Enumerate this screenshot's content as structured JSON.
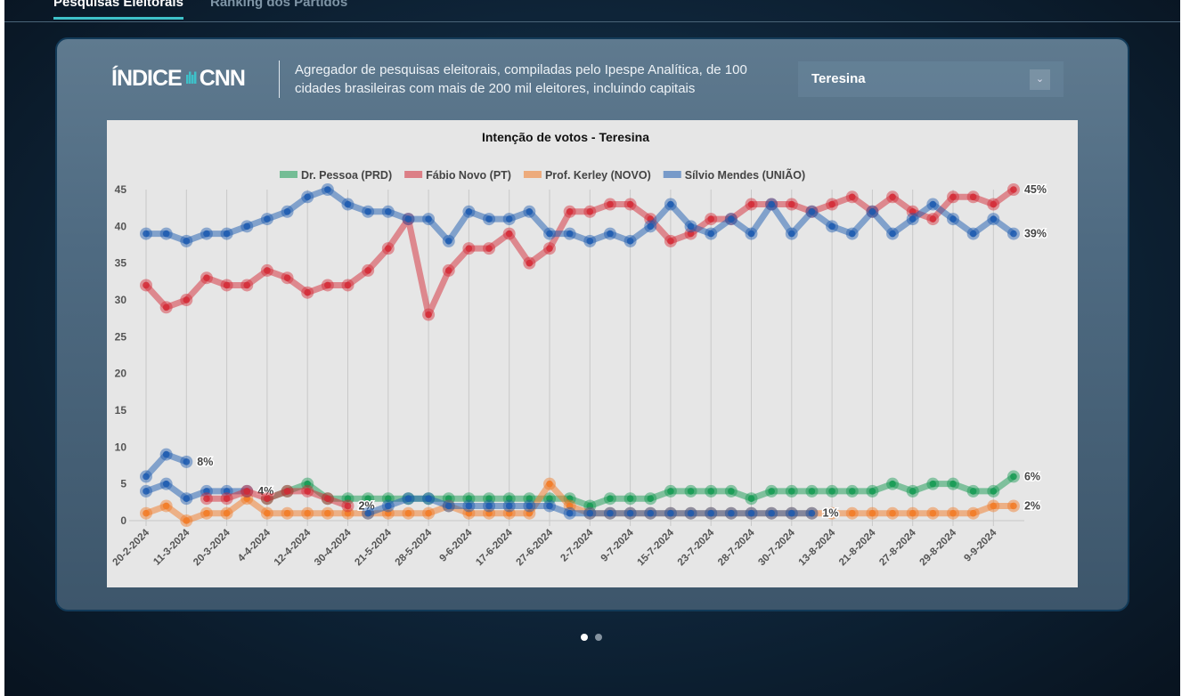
{
  "tabs": [
    {
      "label": "Pesquisas Eleitorais",
      "active": true
    },
    {
      "label": "Ranking dos Partidos",
      "active": false
    }
  ],
  "header": {
    "logo_text": "ÍNDICE CNN",
    "description": "Agregador de pesquisas eleitorais, compiladas pelo Ipespe Analítica, de 100 cidades brasileiras com mais de 200 mil eleitores, incluindo capitais",
    "city_select": {
      "value": "Teresina",
      "icon": "chevron-down-icon"
    }
  },
  "carousel": {
    "pages": 2,
    "active": 0
  },
  "chart_data": {
    "type": "line",
    "title": "Intenção de votos - Teresina",
    "ylim": [
      0,
      45
    ],
    "yticks": [
      0,
      5,
      10,
      15,
      20,
      25,
      30,
      35,
      40,
      45
    ],
    "grid": "vertical",
    "legend": "top",
    "x_tick_labels": [
      "20-2-2024",
      "11-3-2024",
      "20-3-2024",
      "4-4-2024",
      "12-4-2024",
      "30-4-2024",
      "21-5-2024",
      "28-5-2024",
      "9-6-2024",
      "17-6-2024",
      "27-6-2024",
      "2-7-2024",
      "9-7-2024",
      "15-7-2024",
      "23-7-2024",
      "28-7-2024",
      "30-7-2024",
      "13-8-2024",
      "21-8-2024",
      "27-8-2024",
      "29-8-2024",
      "9-9-2024"
    ],
    "series": [
      {
        "name": "Dr. Pessoa (PRD)",
        "color": "#159a52",
        "legend": true,
        "end_label": "6%",
        "values": [
          null,
          null,
          null,
          null,
          null,
          null,
          3,
          4,
          5,
          3,
          3,
          3,
          3,
          3,
          3,
          3,
          3,
          3,
          3,
          3,
          3,
          3,
          2,
          3,
          3,
          3,
          4,
          4,
          4,
          4,
          3,
          4,
          4,
          4,
          4,
          4,
          4,
          5,
          4,
          5,
          5,
          4,
          4,
          6
        ]
      },
      {
        "name": "Fábio Novo (PT)",
        "color": "#d42a36",
        "legend": true,
        "end_label": "45%",
        "values": [
          32,
          29,
          30,
          33,
          32,
          32,
          34,
          33,
          31,
          32,
          32,
          34,
          37,
          41,
          28,
          34,
          37,
          37,
          39,
          35,
          37,
          42,
          42,
          43,
          43,
          41,
          38,
          39,
          41,
          41,
          43,
          43,
          43,
          42,
          43,
          44,
          42,
          44,
          42,
          41,
          44,
          44,
          43,
          45
        ]
      },
      {
        "name": "Prof. Kerley (NOVO)",
        "color": "#f27a25",
        "legend": true,
        "end_label": "2%",
        "values": [
          1,
          2,
          0,
          1,
          1,
          3,
          1,
          1,
          1,
          1,
          1,
          1,
          1,
          1,
          1,
          2,
          1,
          1,
          1,
          1,
          5,
          2,
          1,
          1,
          1,
          1,
          1,
          1,
          1,
          1,
          1,
          1,
          1,
          1,
          1,
          1,
          1,
          1,
          1,
          1,
          1,
          1,
          2,
          2
        ]
      },
      {
        "name": "Sílvio Mendes (UNIÃO)",
        "color": "#1c5bb0",
        "legend": true,
        "end_label": "39%",
        "values": [
          39,
          39,
          38,
          39,
          39,
          40,
          41,
          42,
          44,
          45,
          43,
          42,
          42,
          41,
          41,
          38,
          42,
          41,
          41,
          42,
          39,
          39,
          38,
          39,
          38,
          40,
          43,
          40,
          39,
          41,
          39,
          43,
          39,
          42,
          40,
          39,
          42,
          39,
          41,
          43,
          41,
          39,
          41,
          39
        ]
      },
      {
        "color": "#1c5bb0",
        "legend": false,
        "end_label": "8%",
        "values": [
          6,
          9,
          8
        ]
      },
      {
        "color": "#1c5bb0",
        "legend": false,
        "end_label": "4%",
        "values": [
          4,
          5,
          3,
          4,
          4,
          4
        ]
      },
      {
        "color": "#d42a36",
        "legend": false,
        "end_label": "2%",
        "values": [
          null,
          null,
          null,
          3,
          3,
          4,
          3,
          4,
          4,
          3,
          2
        ]
      },
      {
        "color": "#1c5bb0",
        "legend": false,
        "end_label": "1%",
        "values": [
          null,
          null,
          null,
          null,
          null,
          null,
          null,
          null,
          null,
          null,
          null,
          1,
          2,
          3,
          3,
          2,
          2,
          2,
          2,
          2,
          2,
          1,
          1,
          1,
          1,
          1,
          1,
          1,
          1,
          1,
          1,
          1,
          1,
          1
        ]
      }
    ]
  }
}
